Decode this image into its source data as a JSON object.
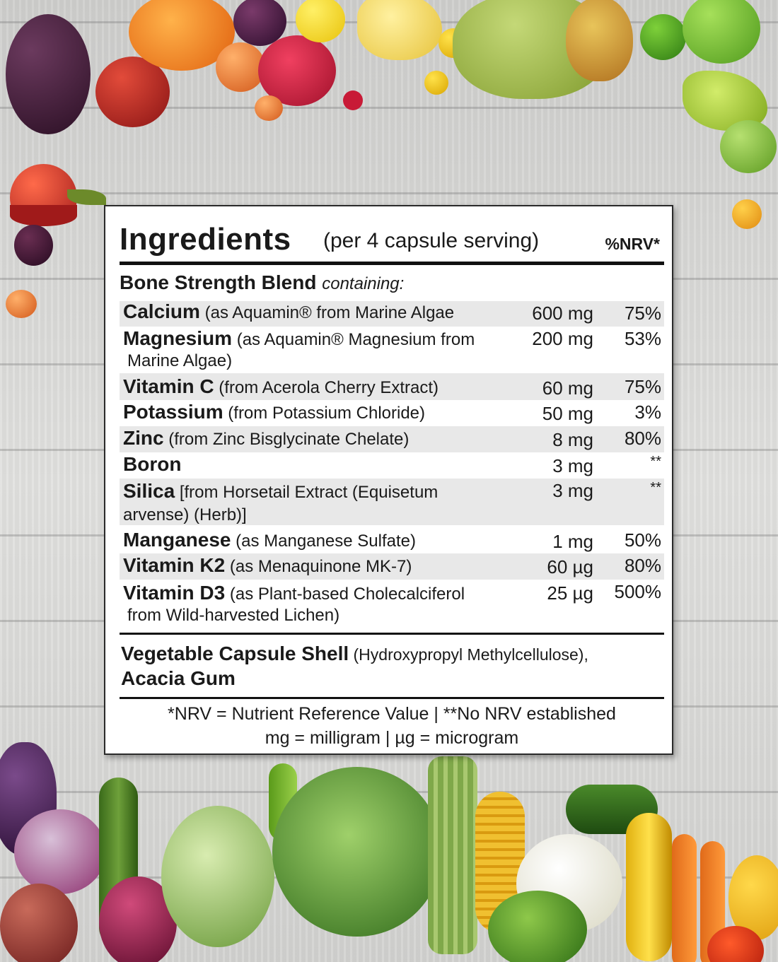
{
  "header": {
    "title": "Ingredients",
    "subtitle": "(per 4 capsule serving)",
    "nrv_header": "%NRV*"
  },
  "blend": {
    "name": "Bone Strength Blend",
    "qualifier": "containing:"
  },
  "ingredients": [
    {
      "name": "Calcium",
      "source": "(as Aquamin® from Marine Algae",
      "amount": "600 mg",
      "nrv": "75%"
    },
    {
      "name": "Magnesium",
      "source": "(as Aquamin® Magnesium from",
      "source2": "Marine Algae)",
      "amount": "200 mg",
      "nrv": "53%"
    },
    {
      "name": "Vitamin C",
      "source": "(from Acerola Cherry Extract)",
      "amount": "60 mg",
      "nrv": "75%"
    },
    {
      "name": "Potassium",
      "source": "(from Potassium Chloride)",
      "amount": "50 mg",
      "nrv": "3%"
    },
    {
      "name": "Zinc",
      "source": "(from Zinc Bisglycinate Chelate)",
      "amount": "8 mg",
      "nrv": "80%"
    },
    {
      "name": "Boron",
      "source": "",
      "amount": "3 mg",
      "nrv": "**"
    },
    {
      "name": "Silica",
      "source": "[from Horsetail Extract (Equisetum",
      "source2": "arvense) (Herb)]",
      "amount": "3 mg",
      "nrv": "**"
    },
    {
      "name": "Manganese",
      "source": "(as Manganese Sulfate)",
      "amount": "1 mg",
      "nrv": "50%"
    },
    {
      "name": "Vitamin K2",
      "source": "(as Menaquinone MK-7)",
      "amount": "60 µg",
      "nrv": "80%"
    },
    {
      "name": "Vitamin D3",
      "source": "(as Plant-based Cholecalciferol",
      "source2": "from Wild-harvested Lichen)",
      "amount": "25 µg",
      "nrv": "500%"
    }
  ],
  "other": {
    "shell_name": "Vegetable Capsule Shell",
    "shell_detail": "(Hydroxypropyl Methylcellulose),",
    "gum": "Acacia Gum"
  },
  "footnote": {
    "line1": "*NRV = Nutrient Reference Value | **No NRV established",
    "line2": "mg = milligram | µg = microgram"
  }
}
